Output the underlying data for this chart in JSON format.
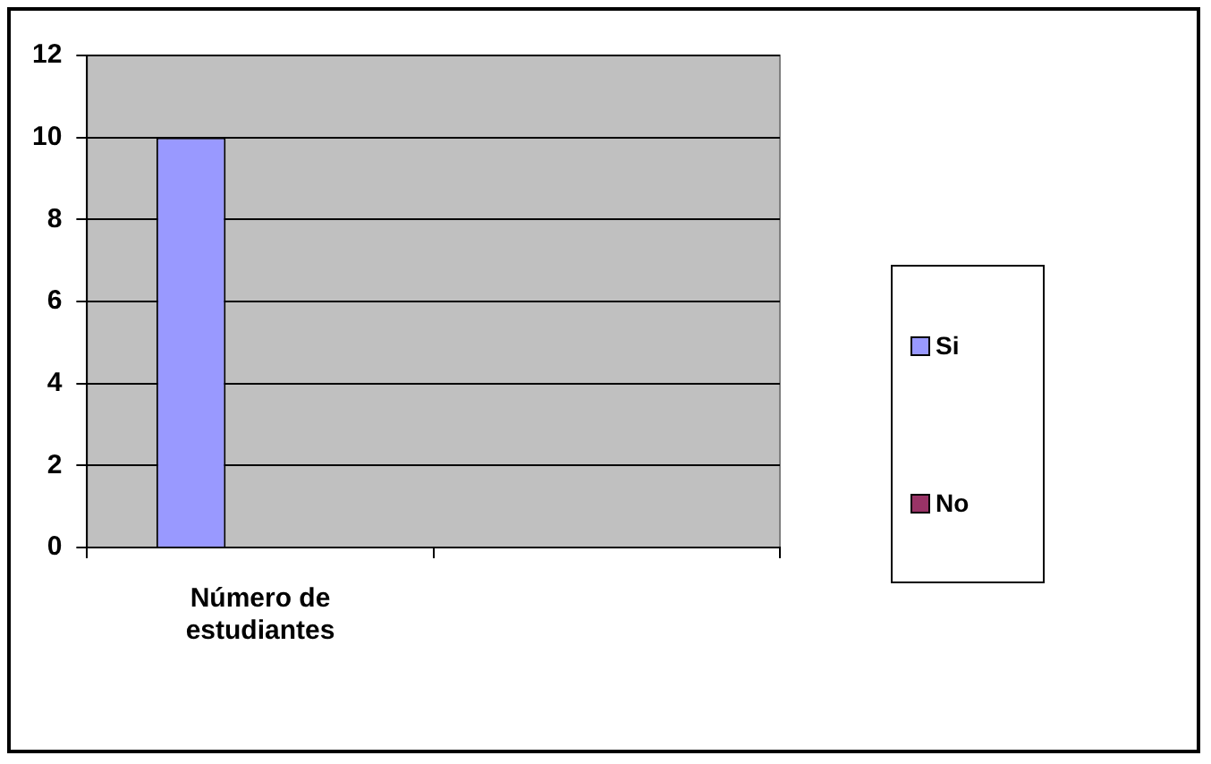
{
  "chart_data": {
    "type": "bar",
    "categories": [
      "Número de estudiantes",
      null
    ],
    "series": [
      {
        "name": "Si",
        "color": "#9999ff",
        "values": [
          10,
          null
        ]
      },
      {
        "name": "No",
        "color": "#993366",
        "values": [
          0,
          null
        ]
      }
    ],
    "ylim": [
      0,
      12
    ],
    "yticks": [
      0,
      2,
      4,
      6,
      8,
      10,
      12
    ],
    "grid": "y",
    "legend": "right"
  }
}
